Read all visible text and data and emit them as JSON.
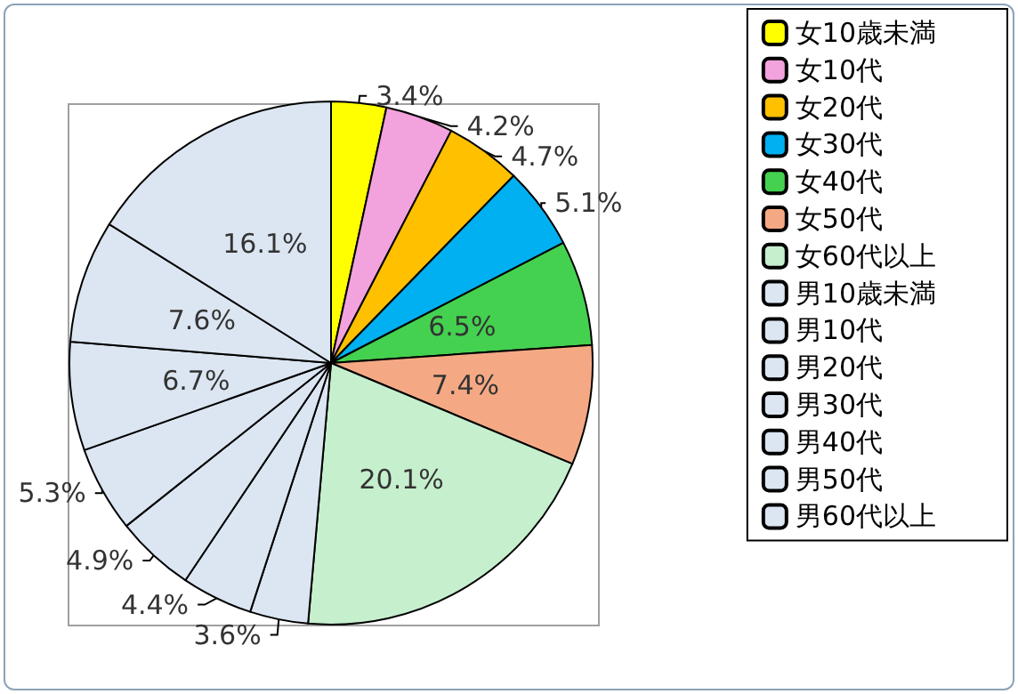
{
  "chart_data": {
    "type": "pie",
    "categories": [
      "女10歳未満",
      "女10代",
      "女20代",
      "女30代",
      "女40代",
      "女50代",
      "女60代以上",
      "男10歳未満",
      "男10代",
      "男20代",
      "男30代",
      "男40代",
      "男50代",
      "男60代以上"
    ],
    "values": [
      3.4,
      4.2,
      4.7,
      5.1,
      6.5,
      7.4,
      20.1,
      3.6,
      4.4,
      4.9,
      5.3,
      6.7,
      7.6,
      16.1
    ],
    "colors": [
      "#ffff00",
      "#f2a2dc",
      "#ffc000",
      "#00b0f0",
      "#44d150",
      "#f4a984",
      "#c6efce",
      "#dce6f2",
      "#dce6f2",
      "#dce6f2",
      "#dce6f2",
      "#dce6f2",
      "#dce6f2",
      "#dce6f2"
    ],
    "value_labels": [
      "3.4%",
      "4.2%",
      "4.7%",
      "5.1%",
      "6.5%",
      "7.4%",
      "20.1%",
      "3.6%",
      "4.4%",
      "4.9%",
      "5.3%",
      "6.7%",
      "7.6%",
      "16.1%"
    ],
    "legend": "right"
  }
}
